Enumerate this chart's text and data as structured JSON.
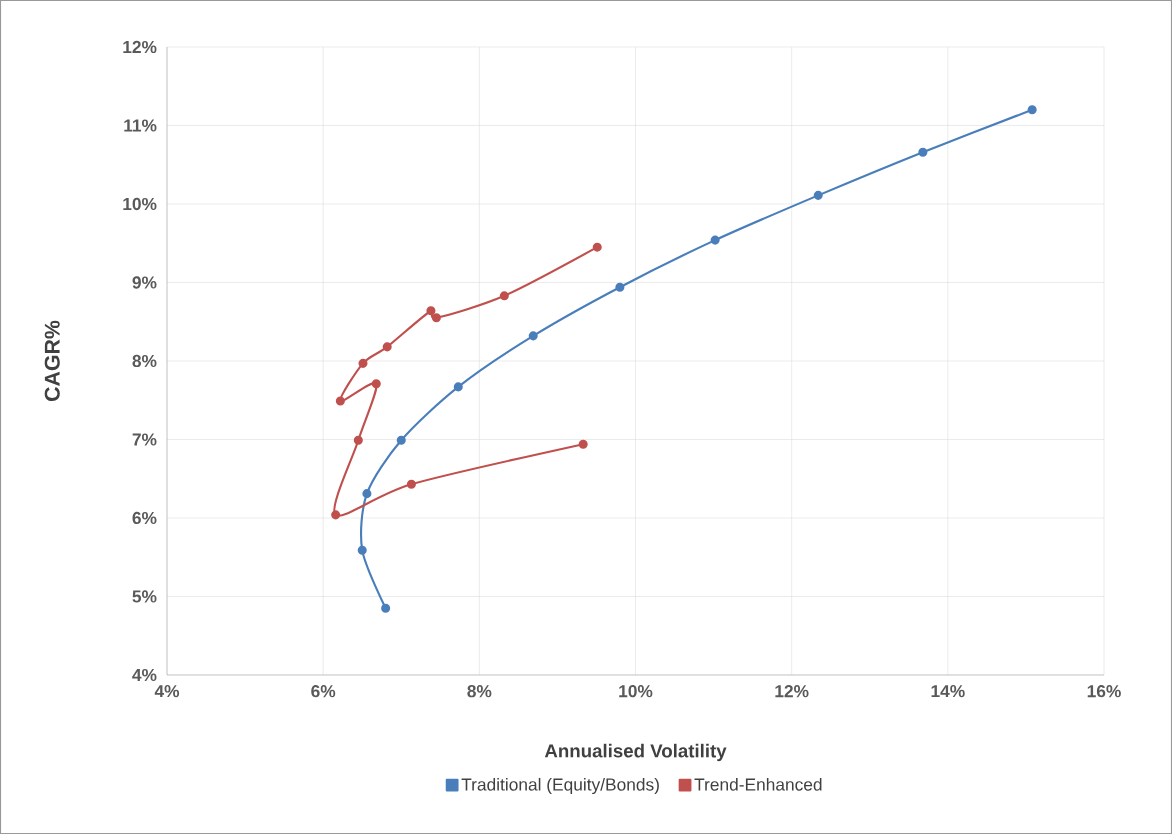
{
  "chart_data": {
    "type": "line",
    "xlabel": "Annualised Volatility",
    "ylabel": "CAGR%",
    "marker": "circle",
    "grid": true,
    "legend": "bottom",
    "xlim": [
      4,
      16
    ],
    "ylim": [
      4,
      12
    ],
    "xticks": [
      {
        "value": 4,
        "label": "4%"
      },
      {
        "value": 6,
        "label": "6%"
      },
      {
        "value": 8,
        "label": "8%"
      },
      {
        "value": 10,
        "label": "10%"
      },
      {
        "value": 12,
        "label": "12%"
      },
      {
        "value": 14,
        "label": "14%"
      },
      {
        "value": 16,
        "label": "16%"
      }
    ],
    "yticks": [
      {
        "value": 4,
        "label": "4%"
      },
      {
        "value": 5,
        "label": "5%"
      },
      {
        "value": 6,
        "label": "6%"
      },
      {
        "value": 7,
        "label": "7%"
      },
      {
        "value": 8,
        "label": "8%"
      },
      {
        "value": 9,
        "label": "9%"
      },
      {
        "value": 10,
        "label": "10%"
      },
      {
        "value": 11,
        "label": "11%"
      },
      {
        "value": 12,
        "label": "12%"
      }
    ],
    "series": [
      {
        "name": "Traditional (Equity/Bonds)",
        "color": "#4a7ebb",
        "x": [
          6.8,
          6.5,
          6.56,
          7.0,
          7.73,
          8.69,
          9.8,
          11.02,
          12.34,
          13.68,
          15.08
        ],
        "values": [
          4.85,
          5.59,
          6.31,
          6.99,
          7.67,
          8.32,
          8.94,
          9.54,
          10.11,
          10.66,
          11.2
        ]
      },
      {
        "name": "Trend-Enhanced",
        "color": "#c0504d",
        "x": [
          9.33,
          7.13,
          6.16,
          6.45,
          6.68,
          6.22,
          6.51,
          6.82,
          7.38,
          7.45,
          8.32,
          9.51
        ],
        "values": [
          6.94,
          6.43,
          6.04,
          6.99,
          7.71,
          7.49,
          7.97,
          8.18,
          8.64,
          8.55,
          8.83,
          9.45
        ]
      }
    ]
  }
}
